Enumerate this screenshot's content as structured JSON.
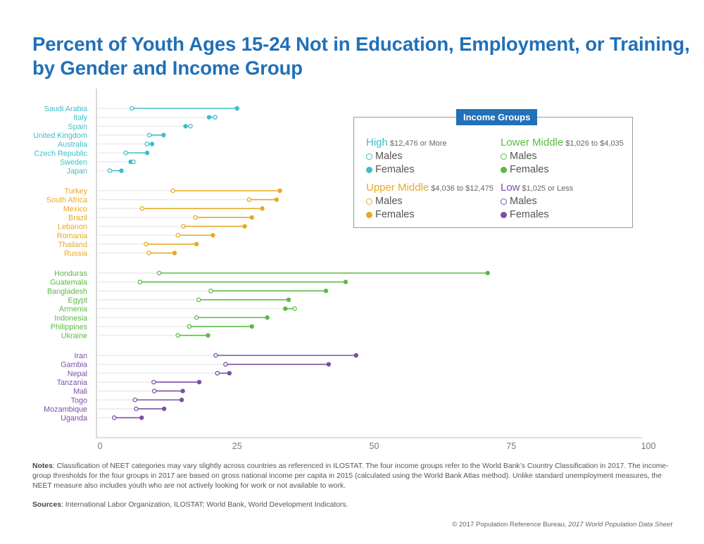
{
  "title": {
    "line1": "Percent of Youth Ages 15-24 Not in Education, Employment, or Training,",
    "line2": "by Gender and Income Group"
  },
  "legend": {
    "title": "Income Groups",
    "male_label": "Males",
    "female_label": "Females",
    "groups": [
      {
        "name": "High",
        "range": "$12,476 or More",
        "color": "#3dbdca"
      },
      {
        "name": "Lower Middle",
        "range": "$1,026 to $4,035",
        "color": "#5bba45"
      },
      {
        "name": "Upper Middle",
        "range": "$4,036 to $12,475",
        "color": "#e8a825"
      },
      {
        "name": "Low",
        "range": "$1,025 or Less",
        "color": "#7b4fa6"
      }
    ]
  },
  "chart_data": {
    "type": "dumbbell",
    "title": "Percent of Youth Ages 15-24 Not in Education, Employment, or Training, by Gender and Income Group",
    "xlabel": "",
    "ylabel": "",
    "xlim": [
      0,
      100
    ],
    "xticks": [
      0,
      25,
      50,
      75,
      100
    ],
    "grid": false,
    "legend_position": "top-right",
    "series_names": [
      "Males",
      "Females"
    ],
    "groups": [
      {
        "name": "High",
        "color": "#3dbdca",
        "countries": [
          {
            "name": "Saudi Arabia",
            "male": 5.8,
            "female": 25.0
          },
          {
            "name": "Italy",
            "male": 21.0,
            "female": 19.9
          },
          {
            "name": "Spain",
            "male": 16.5,
            "female": 15.6
          },
          {
            "name": "United Kingdom",
            "male": 9.0,
            "female": 11.6
          },
          {
            "name": "Australia",
            "male": 8.6,
            "female": 9.5
          },
          {
            "name": "Czech Republic",
            "male": 4.7,
            "female": 8.6
          },
          {
            "name": "Sweden",
            "male": 6.1,
            "female": 5.6
          },
          {
            "name": "Japan",
            "male": 1.8,
            "female": 3.9
          }
        ]
      },
      {
        "name": "Upper Middle",
        "color": "#e8a825",
        "countries": [
          {
            "name": "Turkey",
            "male": 13.3,
            "female": 32.8
          },
          {
            "name": "South Africa",
            "male": 27.2,
            "female": 32.2
          },
          {
            "name": "Mexico",
            "male": 7.7,
            "female": 29.6
          },
          {
            "name": "Brazil",
            "male": 17.4,
            "female": 27.7
          },
          {
            "name": "Lebanon",
            "male": 15.2,
            "female": 26.4
          },
          {
            "name": "Romania",
            "male": 14.2,
            "female": 20.6
          },
          {
            "name": "Thailand",
            "male": 8.4,
            "female": 17.6
          },
          {
            "name": "Russia",
            "male": 8.9,
            "female": 13.6
          }
        ]
      },
      {
        "name": "Lower Middle",
        "color": "#5bba45",
        "countries": [
          {
            "name": "Honduras",
            "male": 10.8,
            "female": 70.7
          },
          {
            "name": "Guatemala",
            "male": 7.3,
            "female": 44.8
          },
          {
            "name": "Bangladesh",
            "male": 20.2,
            "female": 41.2
          },
          {
            "name": "Egypt",
            "male": 18.0,
            "female": 34.4
          },
          {
            "name": "Armenia",
            "male": 35.5,
            "female": 33.8
          },
          {
            "name": "Indonesia",
            "male": 17.6,
            "female": 30.5
          },
          {
            "name": "Philippines",
            "male": 16.3,
            "female": 27.7
          },
          {
            "name": "Ukraine",
            "male": 14.2,
            "female": 19.7
          }
        ]
      },
      {
        "name": "Low",
        "color": "#7b4fa6",
        "countries": [
          {
            "name": "Iran",
            "male": 21.1,
            "female": 46.7
          },
          {
            "name": "Gambia",
            "male": 22.9,
            "female": 41.7
          },
          {
            "name": "Nepal",
            "male": 21.4,
            "female": 23.6
          },
          {
            "name": "Tanzania",
            "male": 9.8,
            "female": 18.1
          },
          {
            "name": "Mali",
            "male": 9.9,
            "female": 15.1
          },
          {
            "name": "Togo",
            "male": 6.4,
            "female": 14.9
          },
          {
            "name": "Mozambique",
            "male": 6.6,
            "female": 11.7
          },
          {
            "name": "Uganda",
            "male": 2.6,
            "female": 7.6
          }
        ]
      }
    ]
  },
  "notes": {
    "label": "Notes",
    "text": ": Classification of NEET categories may vary slightly across countries as referenced in ILOSTAT.  The four income groups refer to the World Bank’s Country Classification in 2017.  The income-group thresholds for the four groups in 2017 are based on gross national income per capita in 2015 (calculated using the World Bank Atlas method). Unlike standard unemployment measures, the NEET measure also includes youth who are not actively looking for work or not available to work."
  },
  "sources": {
    "label": "Sources",
    "text": ": International Labor Organization, ILOSTAT; World Bank, World Development Indicators."
  },
  "credit": {
    "text": "© 2017 Population Reference Bureau, ",
    "italic": "2017 World Population Data Sheet"
  }
}
